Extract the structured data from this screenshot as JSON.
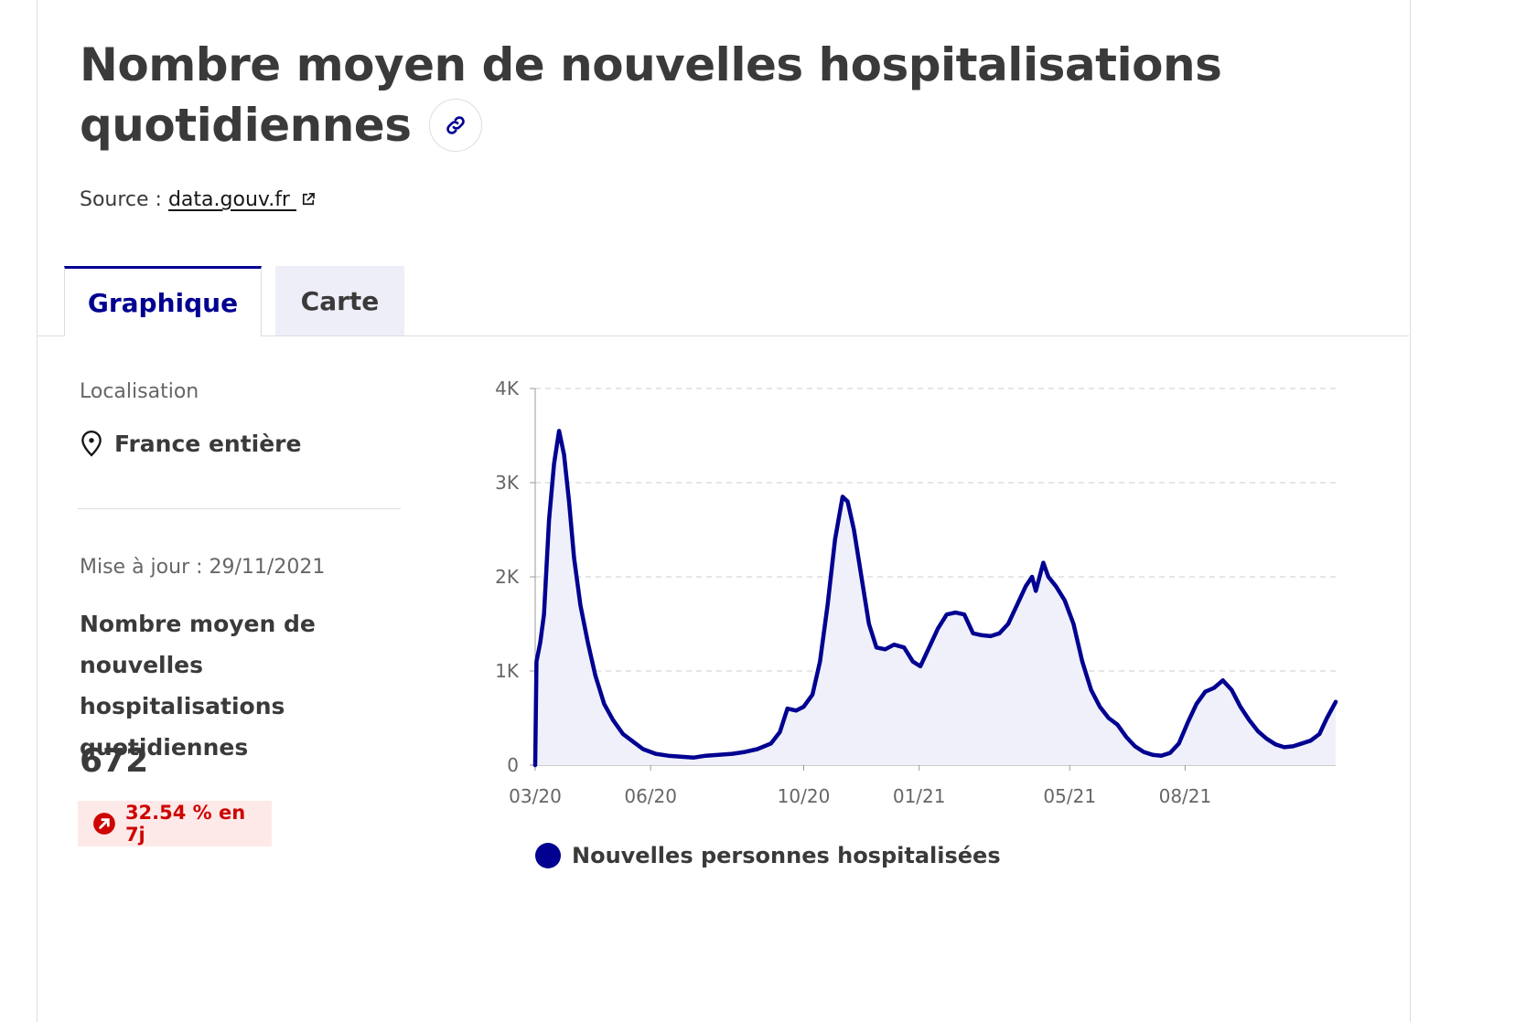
{
  "header": {
    "title": "Nombre moyen de nouvelles hospitalisations quotidiennes",
    "source_prefix": "Source :",
    "source_link": "data.gouv.fr"
  },
  "tabs": [
    {
      "label": "Graphique",
      "active": true
    },
    {
      "label": "Carte",
      "active": false
    }
  ],
  "sidebar": {
    "location_label": "Localisation",
    "location_value": "France entière",
    "update_text": "Mise à jour : 29/11/2021",
    "metric_label": "Nombre moyen de nouvelles hospitalisations quotidiennes",
    "metric_value": "672",
    "trend_text": "32.54 % en 7j"
  },
  "colors": {
    "accent": "#000091",
    "trend_up": "#ce0500",
    "trend_bg": "#fee9e9",
    "area_fill": "#f0f0fa"
  },
  "chart_data": {
    "type": "area",
    "x_tick_labels": [
      "03/20",
      "06/20",
      "10/20",
      "01/21",
      "05/21",
      "08/21"
    ],
    "x_tick_dates": [
      "2020-03-01",
      "2020-06-01",
      "2020-10-01",
      "2021-01-01",
      "2021-05-01",
      "2021-08-01"
    ],
    "y_tick_labels": [
      "0",
      "1K",
      "2K",
      "3K",
      "4K"
    ],
    "y_tick_values": [
      0,
      1000,
      2000,
      3000,
      4000
    ],
    "ylim": [
      0,
      4000
    ],
    "xlim": [
      "2020-03-01",
      "2021-11-29"
    ],
    "grid": true,
    "legend_position": "bottom",
    "series": [
      {
        "name": "Nouvelles personnes hospitalisées",
        "color": "#000091",
        "points": [
          [
            "2020-03-01",
            0
          ],
          [
            "2020-03-02",
            1100
          ],
          [
            "2020-03-05",
            1300
          ],
          [
            "2020-03-08",
            1600
          ],
          [
            "2020-03-12",
            2600
          ],
          [
            "2020-03-16",
            3200
          ],
          [
            "2020-03-20",
            3550
          ],
          [
            "2020-03-24",
            3300
          ],
          [
            "2020-03-28",
            2800
          ],
          [
            "2020-04-01",
            2200
          ],
          [
            "2020-04-06",
            1700
          ],
          [
            "2020-04-12",
            1300
          ],
          [
            "2020-04-18",
            950
          ],
          [
            "2020-04-25",
            650
          ],
          [
            "2020-05-02",
            480
          ],
          [
            "2020-05-10",
            330
          ],
          [
            "2020-05-18",
            250
          ],
          [
            "2020-05-26",
            170
          ],
          [
            "2020-06-05",
            120
          ],
          [
            "2020-06-15",
            100
          ],
          [
            "2020-06-25",
            90
          ],
          [
            "2020-07-05",
            80
          ],
          [
            "2020-07-15",
            100
          ],
          [
            "2020-07-25",
            110
          ],
          [
            "2020-08-05",
            120
          ],
          [
            "2020-08-15",
            140
          ],
          [
            "2020-08-25",
            170
          ],
          [
            "2020-09-05",
            230
          ],
          [
            "2020-09-12",
            350
          ],
          [
            "2020-09-18",
            600
          ],
          [
            "2020-09-25",
            580
          ],
          [
            "2020-10-01",
            620
          ],
          [
            "2020-10-08",
            750
          ],
          [
            "2020-10-14",
            1100
          ],
          [
            "2020-10-20",
            1700
          ],
          [
            "2020-10-26",
            2400
          ],
          [
            "2020-11-01",
            2850
          ],
          [
            "2020-11-05",
            2800
          ],
          [
            "2020-11-10",
            2500
          ],
          [
            "2020-11-16",
            2000
          ],
          [
            "2020-11-22",
            1500
          ],
          [
            "2020-11-28",
            1250
          ],
          [
            "2020-12-05",
            1230
          ],
          [
            "2020-12-12",
            1280
          ],
          [
            "2020-12-20",
            1250
          ],
          [
            "2020-12-27",
            1100
          ],
          [
            "2021-01-02",
            1050
          ],
          [
            "2021-01-09",
            1250
          ],
          [
            "2021-01-16",
            1450
          ],
          [
            "2021-01-23",
            1600
          ],
          [
            "2021-01-30",
            1620
          ],
          [
            "2021-02-06",
            1600
          ],
          [
            "2021-02-13",
            1400
          ],
          [
            "2021-02-20",
            1380
          ],
          [
            "2021-02-27",
            1370
          ],
          [
            "2021-03-06",
            1400
          ],
          [
            "2021-03-13",
            1500
          ],
          [
            "2021-03-20",
            1700
          ],
          [
            "2021-03-27",
            1900
          ],
          [
            "2021-04-01",
            2000
          ],
          [
            "2021-04-04",
            1850
          ],
          [
            "2021-04-07",
            2000
          ],
          [
            "2021-04-10",
            2150
          ],
          [
            "2021-04-14",
            2000
          ],
          [
            "2021-04-20",
            1900
          ],
          [
            "2021-04-27",
            1750
          ],
          [
            "2021-05-04",
            1500
          ],
          [
            "2021-05-11",
            1100
          ],
          [
            "2021-05-18",
            800
          ],
          [
            "2021-05-25",
            620
          ],
          [
            "2021-06-01",
            500
          ],
          [
            "2021-06-08",
            430
          ],
          [
            "2021-06-15",
            300
          ],
          [
            "2021-06-22",
            200
          ],
          [
            "2021-06-29",
            140
          ],
          [
            "2021-07-06",
            110
          ],
          [
            "2021-07-13",
            100
          ],
          [
            "2021-07-20",
            130
          ],
          [
            "2021-07-27",
            230
          ],
          [
            "2021-08-03",
            450
          ],
          [
            "2021-08-10",
            650
          ],
          [
            "2021-08-17",
            780
          ],
          [
            "2021-08-24",
            820
          ],
          [
            "2021-08-31",
            900
          ],
          [
            "2021-09-07",
            800
          ],
          [
            "2021-09-14",
            620
          ],
          [
            "2021-09-21",
            480
          ],
          [
            "2021-09-28",
            360
          ],
          [
            "2021-10-05",
            280
          ],
          [
            "2021-10-12",
            220
          ],
          [
            "2021-10-19",
            190
          ],
          [
            "2021-10-26",
            200
          ],
          [
            "2021-11-02",
            230
          ],
          [
            "2021-11-09",
            260
          ],
          [
            "2021-11-16",
            330
          ],
          [
            "2021-11-22",
            500
          ],
          [
            "2021-11-29",
            672
          ]
        ]
      }
    ]
  }
}
